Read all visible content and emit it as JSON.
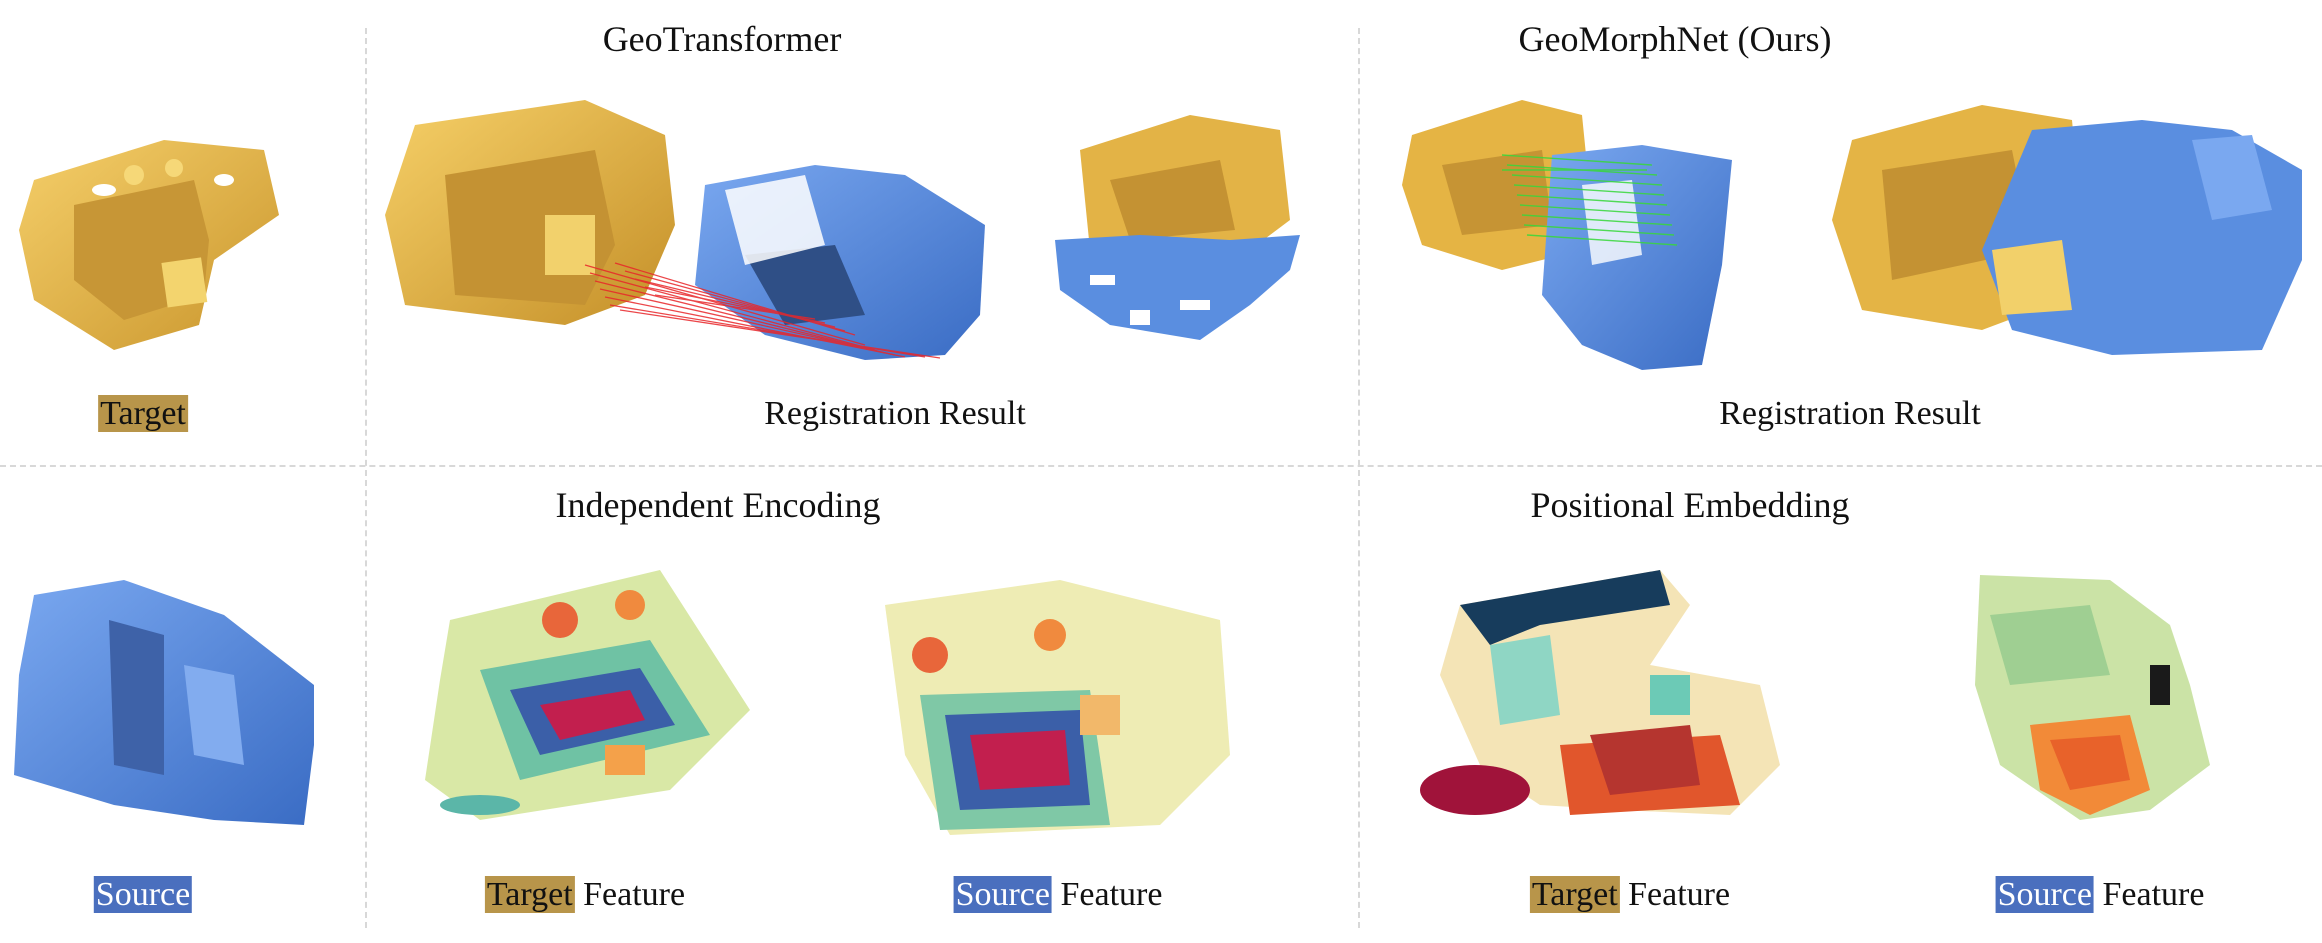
{
  "titles": {
    "geotransformer": "GeoTransformer",
    "geomorphnet": "GeoMorphNet (Ours)",
    "independent_encoding": "Independent Encoding",
    "positional_embedding": "Positional Embedding"
  },
  "captions": {
    "target": "Target",
    "source": "Source",
    "registration_result_left": "Registration Result",
    "registration_result_right": "Registration Result",
    "target_word": "Target",
    "source_word": "Source",
    "feature_word": "Feature"
  },
  "colors": {
    "target_point_cloud": "#e8b64a",
    "source_point_cloud": "#5a8ee0",
    "wrong_correspondence": "#e8262a",
    "correct_correspondence": "#38d83a",
    "target_label_bg": "#b8954a",
    "source_label_bg": "#4a6fbe"
  }
}
